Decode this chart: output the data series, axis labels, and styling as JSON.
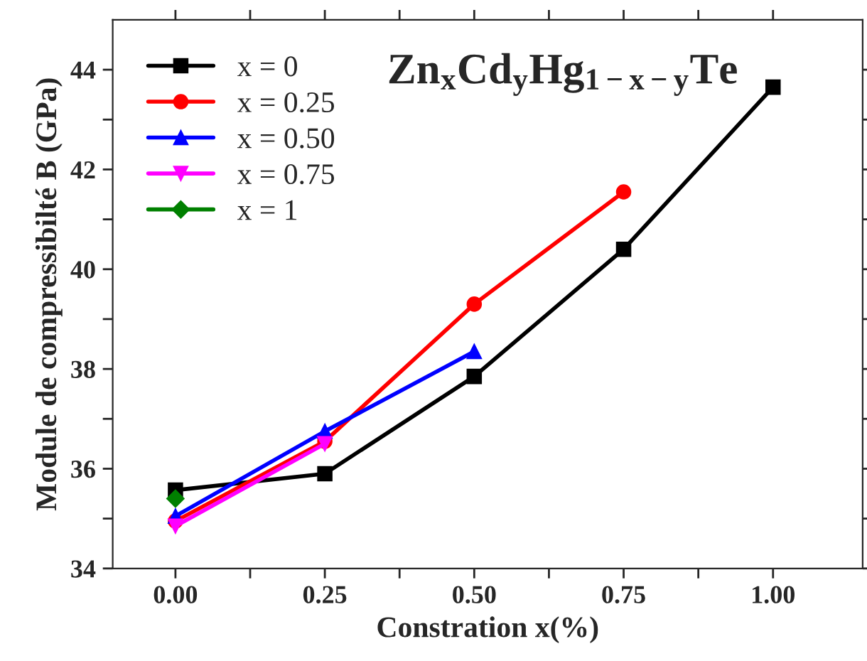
{
  "chart_data": {
    "type": "line",
    "xlabel": "Constration x(%)",
    "ylabel": "Module de compressibilté B (GPa)",
    "annotations": [
      "Zn$_{x}$Cd$_{y}$Hg$_{1−x−y}$Te"
    ],
    "xlim": [
      -0.105,
      1.15
    ],
    "ylim": [
      34,
      45
    ],
    "xticks": [
      {
        "value": 0.0,
        "label": "0.00"
      },
      {
        "value": 0.125,
        "label": null
      },
      {
        "value": 0.25,
        "label": "0.25"
      },
      {
        "value": 0.375,
        "label": null
      },
      {
        "value": 0.5,
        "label": "0.50"
      },
      {
        "value": 0.625,
        "label": null
      },
      {
        "value": 0.75,
        "label": "0.75"
      },
      {
        "value": 0.875,
        "label": null
      },
      {
        "value": 1.0,
        "label": "1.00"
      }
    ],
    "yticks": [
      34,
      {
        "value": 35,
        "label": null
      },
      36,
      {
        "value": 37,
        "label": null
      },
      38,
      {
        "value": 39,
        "label": null
      },
      40,
      {
        "value": 41,
        "label": null
      },
      42,
      {
        "value": 43,
        "label": null
      },
      44
    ],
    "grid": false,
    "legend": "top left",
    "line_style": "solid",
    "series": [
      {
        "name": "x = 0",
        "color": "#000000",
        "marker": "square",
        "x": [
          0,
          0.25,
          0.5,
          0.75,
          1.0
        ],
        "values": [
          35.57,
          35.9,
          37.85,
          40.4,
          43.65
        ]
      },
      {
        "name": "x = 0.25",
        "color": "#ff0000",
        "marker": "circle",
        "x": [
          0,
          0.25,
          0.5,
          0.75
        ],
        "values": [
          34.95,
          36.55,
          39.3,
          41.55
        ]
      },
      {
        "name": "x = 0.50",
        "color": "#0000ff",
        "marker": "triangle",
        "x": [
          0,
          0.25,
          0.5
        ],
        "values": [
          35.05,
          36.75,
          38.35
        ]
      },
      {
        "name": "x = 0.75",
        "color": "#ff00ff",
        "marker": "triangle_down",
        "x": [
          0,
          0.25
        ],
        "values": [
          34.85,
          36.5
        ]
      },
      {
        "name": "x = 1",
        "color": "#008000",
        "marker": "diamond",
        "x": [
          0
        ],
        "values": [
          35.4
        ]
      }
    ]
  }
}
